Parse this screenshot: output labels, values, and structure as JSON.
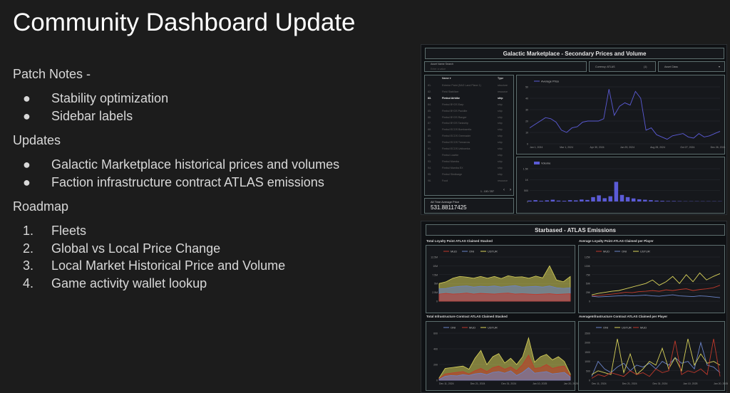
{
  "slide": {
    "title": "Community Dashboard Update",
    "sections": [
      {
        "heading": "Patch Notes -",
        "bullet": "●",
        "items": [
          "Stability optimization",
          "Sidebar labels"
        ]
      },
      {
        "heading": "Updates",
        "bullet": "●",
        "items": [
          "Galactic Marketplace historical prices and volumes",
          "Faction infrastructure contract ATLAS emissions"
        ]
      },
      {
        "heading": "Roadmap",
        "numbered": true,
        "items": [
          "Fleets",
          "Global vs Local Price Change",
          "Local Market Historical Price and Volume",
          "Game activity wallet lookup"
        ]
      }
    ]
  },
  "marketplace": {
    "title": "Galactic Marketplace - Secondary Prices and Volume",
    "search_label": "Asset Name Search",
    "search_placeholder": "Enter a value",
    "currency": "Currency: ATLAS",
    "currency_count": "(1)",
    "asset_class": "Asset Class",
    "table": {
      "headers": [
        "Name ▾",
        "Type"
      ],
      "rows": [
        [
          "81.",
          "Exterior Paint (SAG Land Plane 1)",
          "structure"
        ],
        [
          "82.",
          "Field Stabilizer",
          "resource"
        ],
        [
          "83.",
          "Fimbul Airbike",
          "ship"
        ],
        [
          "84.",
          "Fimbul BYOS Earp",
          "ship"
        ],
        [
          "85.",
          "Fimbul BYOS Packlite",
          "ship"
        ],
        [
          "86.",
          "Fimbul BYOS Ranger",
          "ship"
        ],
        [
          "87.",
          "Fimbul BYOS Tankship",
          "ship"
        ],
        [
          "88.",
          "Fimbul ECOS Bombarella",
          "ship"
        ],
        [
          "89.",
          "Fimbul ECOS Greenader",
          "ship"
        ],
        [
          "90.",
          "Fimbul ECOS Treearrow",
          "ship"
        ],
        [
          "91.",
          "Fimbul ECOS Unibomba",
          "ship"
        ],
        [
          "92.",
          "Fimbul Lowbie",
          "ship"
        ],
        [
          "93.",
          "Fimbul Mamba",
          "ship"
        ],
        [
          "94.",
          "Fimbul Mamba EX",
          "ship"
        ],
        [
          "95.",
          "Fimbul Sledbarge",
          "ship"
        ],
        [
          "96.",
          "Food",
          "resource"
        ]
      ],
      "pagination": "1 - 100 / 257",
      "prev": "‹",
      "next": "›"
    },
    "avg_label": "All Time Average Price",
    "avg_value": "531.88117425"
  },
  "emissions": {
    "title": "Starbased - ATLAS Emissions"
  },
  "chart_data": [
    {
      "type": "line",
      "title": "",
      "legend": [
        "Average Price"
      ],
      "colors": [
        "#5b5bd6"
      ],
      "ylim": [
        0,
        50
      ],
      "yticks": [
        "0",
        "10",
        "20",
        "30",
        "40",
        "50"
      ],
      "xticks": [
        "Jan 1, 2024",
        "Mar 1, 2024",
        "Apr 30, 2024",
        "Jun 29, 2024",
        "Aug 28, 2024",
        "Oct 27, 2024",
        "Dec 26, 2024"
      ],
      "series": [
        {
          "name": "Average Price",
          "values": [
            14,
            17,
            20,
            23,
            22,
            19,
            12,
            10,
            14,
            15,
            19,
            20,
            20,
            20,
            22,
            48,
            25,
            33,
            36,
            34,
            46,
            40,
            12,
            14,
            8,
            6,
            4,
            7,
            8,
            9,
            6,
            5,
            9,
            6,
            7,
            9,
            11
          ]
        }
      ]
    },
    {
      "type": "bar",
      "title": "",
      "legend": [
        "Volume"
      ],
      "colors": [
        "#5b5bd6"
      ],
      "ylim": [
        0,
        1500
      ],
      "yticks": [
        "0",
        "500",
        "1K",
        "1.5K"
      ],
      "series": [
        {
          "name": "Volume",
          "values": [
            40,
            60,
            30,
            50,
            80,
            40,
            30,
            60,
            50,
            90,
            70,
            200,
            280,
            150,
            240,
            900,
            300,
            200,
            140,
            100,
            80,
            60,
            40,
            30,
            20,
            20,
            15,
            10,
            10,
            10,
            10,
            10,
            10,
            10
          ]
        }
      ]
    },
    {
      "type": "area",
      "title": "Total Loyalty Point ATLAS Claimed Stacked",
      "legend": [
        "MUD",
        "ONI",
        "USTUR"
      ],
      "colors": [
        "#c0392b",
        "#6b84c9",
        "#d9d35a"
      ],
      "ylim": [
        0,
        12500000
      ],
      "yticks": [
        "0",
        "2.5M",
        "5M",
        "7.5M",
        "10M",
        "12.5M"
      ],
      "series": [
        {
          "name": "MUD",
          "values": [
            2,
            2.2,
            2,
            2.1,
            2.3,
            2,
            2.2,
            2.1,
            2,
            2.2,
            2.3,
            2,
            2.1,
            2,
            1.9,
            2,
            2.1,
            1.9,
            2,
            2.1
          ]
        },
        {
          "name": "ONI",
          "values": [
            3.5,
            3.6,
            4,
            4.2,
            4.3,
            4,
            4.2,
            4.1,
            4.3,
            4,
            4.2,
            4.4,
            4,
            4.1,
            4.2,
            4,
            4.3,
            3.8,
            3.6,
            3.8
          ]
        },
        {
          "name": "USTUR",
          "values": [
            5,
            5.5,
            6.5,
            7,
            6.8,
            6.5,
            7,
            6.5,
            7,
            6.4,
            7.2,
            6.8,
            6.9,
            6.5,
            7.1,
            6.6,
            10,
            6,
            5.5,
            7
          ]
        }
      ]
    },
    {
      "type": "line",
      "title": "Average Loyalty Point ATLAS Claimed per Player",
      "legend": [
        "MUD",
        "ONI",
        "USTUR"
      ],
      "colors": [
        "#c0392b",
        "#6b84c9",
        "#d9d35a"
      ],
      "ylim": [
        0,
        125000
      ],
      "yticks": [
        "0",
        "25K",
        "50K",
        "75K",
        "100K",
        "125K"
      ],
      "series": [
        {
          "name": "MUD",
          "values": [
            15,
            16,
            18,
            20,
            22,
            25,
            24,
            27,
            28,
            30,
            28,
            32,
            30,
            33,
            35,
            30,
            33,
            35,
            38,
            45
          ]
        },
        {
          "name": "ONI",
          "values": [
            14,
            12,
            13,
            14,
            15,
            16,
            15,
            16,
            17,
            15,
            14,
            16,
            18,
            15,
            14,
            13,
            15,
            14,
            12,
            10
          ]
        },
        {
          "name": "USTUR",
          "values": [
            18,
            22,
            25,
            28,
            30,
            35,
            40,
            45,
            50,
            60,
            45,
            55,
            70,
            50,
            75,
            55,
            80,
            60,
            70,
            78
          ]
        }
      ]
    },
    {
      "type": "area",
      "title": "Total Infrastructure Contract ATLAS Claimed Stacked",
      "legend": [
        "ONI",
        "MUD",
        "USTUR"
      ],
      "colors": [
        "#6b84c9",
        "#c0392b",
        "#d9d35a"
      ],
      "ylim": [
        0,
        600
      ],
      "yticks": [
        "0",
        "200",
        "400",
        "600"
      ],
      "xticks": [
        "Dec 11, 2024",
        "Dec 21, 2024",
        "Dec 31, 2024",
        "Jan 10, 2025",
        "Jan 20, 2025"
      ],
      "series": [
        {
          "name": "ONI",
          "values": [
            10,
            50,
            60,
            55,
            70,
            60,
            80,
            90,
            70,
            100,
            110,
            90,
            120,
            60,
            100,
            160,
            90,
            100,
            110,
            80,
            90,
            100,
            40
          ]
        },
        {
          "name": "MUD",
          "values": [
            20,
            80,
            90,
            100,
            110,
            80,
            120,
            150,
            110,
            160,
            180,
            140,
            170,
            120,
            200,
            320,
            150,
            160,
            200,
            150,
            170,
            180,
            60
          ]
        },
        {
          "name": "USTUR",
          "values": [
            30,
            150,
            160,
            170,
            180,
            140,
            280,
            380,
            200,
            300,
            340,
            220,
            280,
            200,
            300,
            540,
            230,
            300,
            330,
            260,
            300,
            240,
            80
          ]
        }
      ]
    },
    {
      "type": "line",
      "title": "AverageInfrastructure Contract ATLAS Claimed per Player",
      "legend": [
        "ONI",
        "USTUR",
        "MUD"
      ],
      "colors": [
        "#6b84c9",
        "#d9d35a",
        "#c0392b"
      ],
      "ylim": [
        0,
        2500
      ],
      "yticks": [
        "0",
        "500",
        "1000",
        "1500",
        "2000",
        "2500"
      ],
      "xticks": [
        "Dec 11, 2024",
        "Dec 21, 2024",
        "Dec 31, 2024",
        "Jan 10, 2025",
        "Jan 20, 2025"
      ],
      "series": [
        {
          "name": "ONI",
          "values": [
            200,
            1000,
            600,
            400,
            700,
            900,
            500,
            800,
            700,
            900,
            600,
            1000,
            800,
            1200,
            900,
            1000,
            600,
            2000,
            800,
            700,
            400
          ]
        },
        {
          "name": "USTUR",
          "values": [
            300,
            500,
            400,
            300,
            2200,
            400,
            1400,
            300,
            600,
            1000,
            800,
            1700,
            600,
            1200,
            500,
            2200,
            800,
            1400,
            900,
            1000,
            800
          ]
        },
        {
          "name": "MUD",
          "values": [
            100,
            300,
            200,
            400,
            300,
            200,
            500,
            300,
            400,
            200,
            600,
            400,
            500,
            2100,
            300,
            500,
            400,
            600,
            300,
            2200,
            200
          ]
        }
      ]
    }
  ]
}
